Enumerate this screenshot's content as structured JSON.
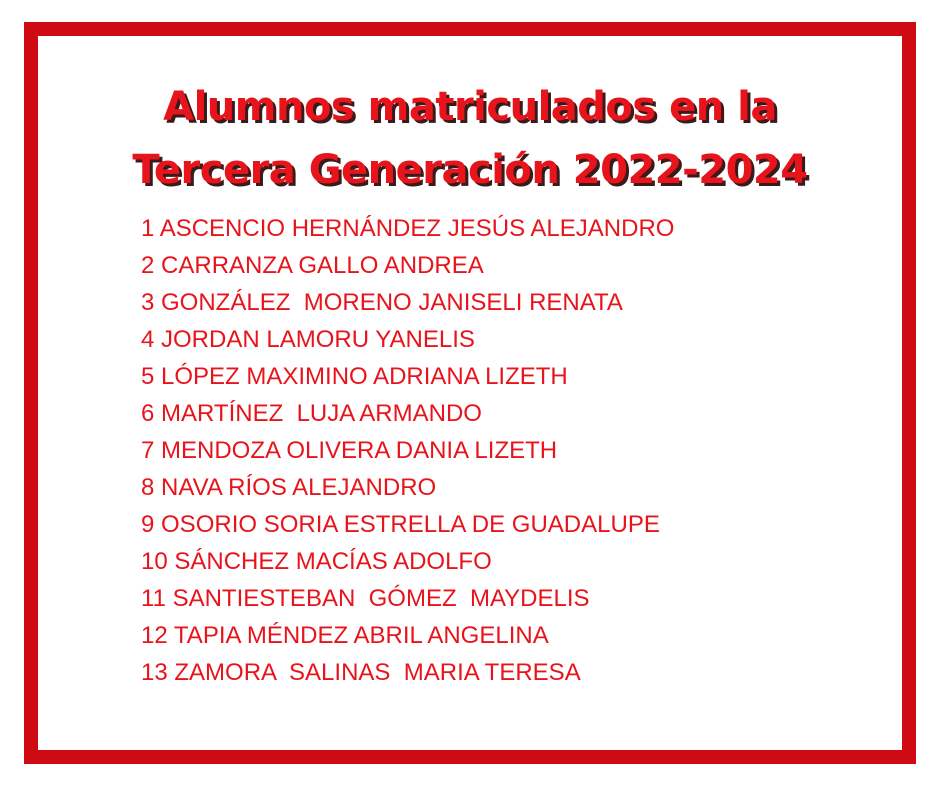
{
  "header": {
    "title_lines": [
      "Alumnos matriculados en la",
      "Tercera Generación 2022-2024"
    ]
  },
  "students": [
    "1 ASCENCIO HERNÁNDEZ JESÚS ALEJANDRO",
    "2 CARRANZA GALLO ANDREA",
    "3 GONZÁLEZ  MORENO JANISELI RENATA",
    "4 JORDAN LAMORU YANELIS",
    "5 LÓPEZ MAXIMINO ADRIANA LIZETH",
    "6 MARTÍNEZ  LUJA ARMANDO",
    "7 MENDOZA OLIVERA DANIA LIZETH",
    "8 NAVA RÍOS ALEJANDRO",
    "9 OSORIO SORIA ESTRELLA DE GUADALUPE",
    "10 SÁNCHEZ MACÍAS ADOLFO",
    "11 SANTIESTEBAN  GÓMEZ  MAYDELIS",
    "12 TAPIA MÉNDEZ ABRIL ANGELINA",
    "13 ZAMORA  SALINAS  MARIA TERESA"
  ]
}
